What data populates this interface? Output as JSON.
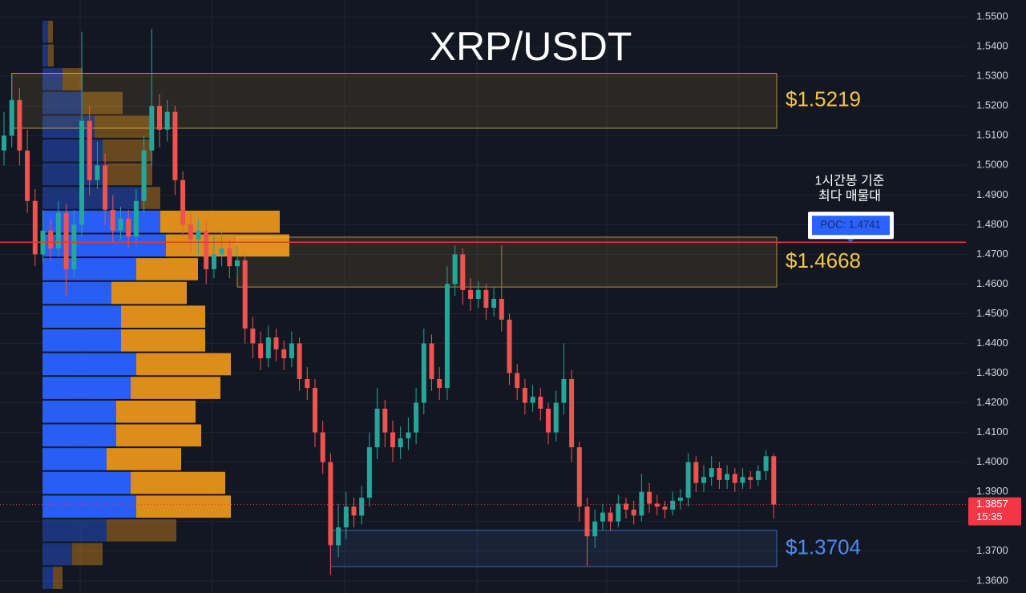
{
  "chart_data": {
    "type": "candlestick",
    "title": "XRP/USDT",
    "up_color": "#26a69a",
    "down_color": "#ef5350",
    "open": [
      1.505,
      1.51,
      1.522,
      1.505,
      1.488,
      1.47,
      1.478,
      1.472,
      1.484,
      1.465,
      1.48,
      1.515,
      1.495,
      1.5,
      1.485,
      1.478,
      1.482,
      1.476,
      1.488,
      1.505,
      1.52,
      1.512,
      1.518,
      1.495,
      1.48,
      1.475,
      1.478,
      1.465,
      1.47,
      1.472,
      1.466,
      1.468,
      1.445,
      1.44,
      1.435,
      1.442,
      1.438,
      1.435,
      1.44,
      1.428,
      1.425,
      1.41,
      1.4,
      1.372,
      1.378,
      1.385,
      1.382,
      1.388,
      1.405,
      1.418,
      1.41,
      1.405,
      1.408,
      1.41,
      1.42,
      1.44,
      1.428,
      1.425,
      1.46,
      1.47,
      1.458,
      1.455,
      1.458,
      1.452,
      1.455,
      1.448,
      1.43,
      1.425,
      1.42,
      1.422,
      1.418,
      1.41,
      1.42,
      1.428,
      1.405,
      1.385,
      1.375,
      1.38,
      1.383,
      1.38,
      1.386,
      1.384,
      1.382,
      1.39,
      1.386,
      1.385,
      1.384,
      1.387,
      1.388,
      1.4,
      1.393,
      1.395,
      1.398,
      1.394,
      1.396,
      1.393,
      1.395,
      1.394,
      1.397,
      1.402
    ],
    "high": [
      1.518,
      1.53,
      1.526,
      1.512,
      1.492,
      1.485,
      1.482,
      1.488,
      1.487,
      1.485,
      1.545,
      1.52,
      1.508,
      1.504,
      1.49,
      1.486,
      1.485,
      1.492,
      1.51,
      1.546,
      1.524,
      1.522,
      1.52,
      1.498,
      1.484,
      1.482,
      1.481,
      1.476,
      1.478,
      1.475,
      1.473,
      1.47,
      1.449,
      1.444,
      1.446,
      1.445,
      1.441,
      1.444,
      1.442,
      1.432,
      1.428,
      1.414,
      1.403,
      1.386,
      1.39,
      1.388,
      1.392,
      1.41,
      1.425,
      1.421,
      1.414,
      1.412,
      1.415,
      1.425,
      1.445,
      1.443,
      1.432,
      1.466,
      1.473,
      1.472,
      1.462,
      1.461,
      1.46,
      1.459,
      1.473,
      1.45,
      1.433,
      1.428,
      1.426,
      1.425,
      1.42,
      1.424,
      1.44,
      1.431,
      1.407,
      1.388,
      1.384,
      1.386,
      1.385,
      1.389,
      1.388,
      1.387,
      1.396,
      1.393,
      1.389,
      1.387,
      1.39,
      1.391,
      1.403,
      1.402,
      1.399,
      1.402,
      1.4,
      1.399,
      1.398,
      1.398,
      1.397,
      1.399,
      1.404,
      1.403
    ],
    "low": [
      1.5,
      1.506,
      1.5,
      1.484,
      1.466,
      1.467,
      1.468,
      1.469,
      1.456,
      1.462,
      1.476,
      1.49,
      1.492,
      1.48,
      1.474,
      1.475,
      1.472,
      1.473,
      1.484,
      1.5,
      1.506,
      1.508,
      1.49,
      1.476,
      1.471,
      1.47,
      1.46,
      1.462,
      1.466,
      1.462,
      1.463,
      1.44,
      1.435,
      1.431,
      1.432,
      1.434,
      1.431,
      1.432,
      1.424,
      1.421,
      1.405,
      1.396,
      1.362,
      1.368,
      1.374,
      1.378,
      1.379,
      1.385,
      1.401,
      1.405,
      1.4,
      1.401,
      1.404,
      1.406,
      1.416,
      1.424,
      1.421,
      1.421,
      1.456,
      1.453,
      1.451,
      1.452,
      1.448,
      1.449,
      1.444,
      1.426,
      1.421,
      1.416,
      1.417,
      1.414,
      1.406,
      1.407,
      1.416,
      1.4,
      1.38,
      1.365,
      1.371,
      1.377,
      1.377,
      1.378,
      1.381,
      1.379,
      1.38,
      1.383,
      1.382,
      1.381,
      1.382,
      1.384,
      1.385,
      1.39,
      1.39,
      1.392,
      1.391,
      1.391,
      1.39,
      1.391,
      1.391,
      1.392,
      1.394,
      1.381
    ],
    "close": [
      1.51,
      1.522,
      1.505,
      1.488,
      1.47,
      1.478,
      1.472,
      1.484,
      1.465,
      1.48,
      1.515,
      1.495,
      1.5,
      1.485,
      1.478,
      1.482,
      1.476,
      1.488,
      1.505,
      1.52,
      1.512,
      1.518,
      1.495,
      1.48,
      1.475,
      1.478,
      1.465,
      1.47,
      1.472,
      1.466,
      1.468,
      1.445,
      1.44,
      1.435,
      1.442,
      1.438,
      1.435,
      1.44,
      1.428,
      1.425,
      1.41,
      1.4,
      1.372,
      1.378,
      1.385,
      1.382,
      1.388,
      1.405,
      1.418,
      1.41,
      1.405,
      1.408,
      1.41,
      1.42,
      1.44,
      1.428,
      1.425,
      1.46,
      1.47,
      1.458,
      1.455,
      1.458,
      1.452,
      1.455,
      1.448,
      1.43,
      1.425,
      1.42,
      1.422,
      1.418,
      1.41,
      1.42,
      1.428,
      1.405,
      1.385,
      1.375,
      1.38,
      1.383,
      1.38,
      1.386,
      1.384,
      1.382,
      1.39,
      1.386,
      1.385,
      1.384,
      1.387,
      1.388,
      1.4,
      1.393,
      1.395,
      1.398,
      1.394,
      1.396,
      1.393,
      1.395,
      1.394,
      1.397,
      1.402,
      1.3857
    ],
    "ylim": [
      1.3559,
      1.5557
    ],
    "yticks": [
      {
        "value": 1.36,
        "label": "1.3600"
      },
      {
        "value": 1.37,
        "label": "1.3700"
      },
      {
        "value": 1.38,
        "label": "1.3800"
      },
      {
        "value": 1.39,
        "label": "1.3900"
      },
      {
        "value": 1.4,
        "label": "1.4000"
      },
      {
        "value": 1.41,
        "label": "1.4100"
      },
      {
        "value": 1.42,
        "label": "1.4200"
      },
      {
        "value": 1.43,
        "label": "1.4300"
      },
      {
        "value": 1.44,
        "label": "1.4400"
      },
      {
        "value": 1.45,
        "label": "1.4500"
      },
      {
        "value": 1.46,
        "label": "1.4600"
      },
      {
        "value": 1.47,
        "label": "1.4700"
      },
      {
        "value": 1.48,
        "label": "1.4800"
      },
      {
        "value": 1.49,
        "label": "1.4900"
      },
      {
        "value": 1.5,
        "label": "1.5000"
      },
      {
        "value": 1.51,
        "label": "1.5100"
      },
      {
        "value": 1.52,
        "label": "1.5200"
      },
      {
        "value": 1.53,
        "label": "1.5300"
      },
      {
        "value": 1.54,
        "label": "1.5400"
      },
      {
        "value": 1.55,
        "label": "1.5500"
      }
    ],
    "grid": true,
    "volume_profile": {
      "bins": [
        1.357,
        1.365,
        1.373,
        1.381,
        1.389,
        1.397,
        1.405,
        1.413,
        1.421,
        1.429,
        1.437,
        1.445,
        1.453,
        1.461,
        1.469,
        1.477,
        1.485,
        1.493,
        1.501,
        1.509,
        1.517,
        1.525,
        1.533,
        1.541,
        1.549
      ],
      "value_area": [
        1.381,
        1.485
      ],
      "series": [
        {
          "color": "#2962ff",
          "values": [
            13,
            37,
            80,
            117,
            110,
            80,
            92,
            92,
            110,
            117,
            98,
            98,
            86,
            117,
            154,
            147,
            123,
            80,
            75,
            65,
            50,
            25,
            7,
            7
          ]
        },
        {
          "color": "#e8941a",
          "values": [
            12,
            38,
            87,
            118,
            118,
            93,
            106,
            99,
            112,
            118,
            105,
            105,
            94,
            77,
            154,
            149,
            24,
            57,
            62,
            72,
            50,
            25,
            7,
            6
          ]
        }
      ]
    },
    "zones": [
      {
        "label": "$1.5219",
        "value": 1.5219,
        "top": 1.531,
        "bottom": 1.5125,
        "start": 1,
        "color": "#f5c542"
      },
      {
        "label": "$1.4668",
        "value": 1.4668,
        "top": 1.4758,
        "bottom": 1.459,
        "start": 30,
        "color": "#f5c542"
      },
      {
        "label": "$1.3704",
        "value": 1.3704,
        "top": 1.377,
        "bottom": 1.3648,
        "start": 42,
        "color": "#4a8bf5"
      }
    ],
    "poc": {
      "value": 1.4741,
      "label": "POC: 1.4741",
      "color": "#e53935",
      "annotation": [
        "1시간봉 기준",
        "최다 매물대"
      ]
    },
    "last_price": {
      "value": 1.3857,
      "time": "15:35",
      "color": "#f23645"
    }
  }
}
